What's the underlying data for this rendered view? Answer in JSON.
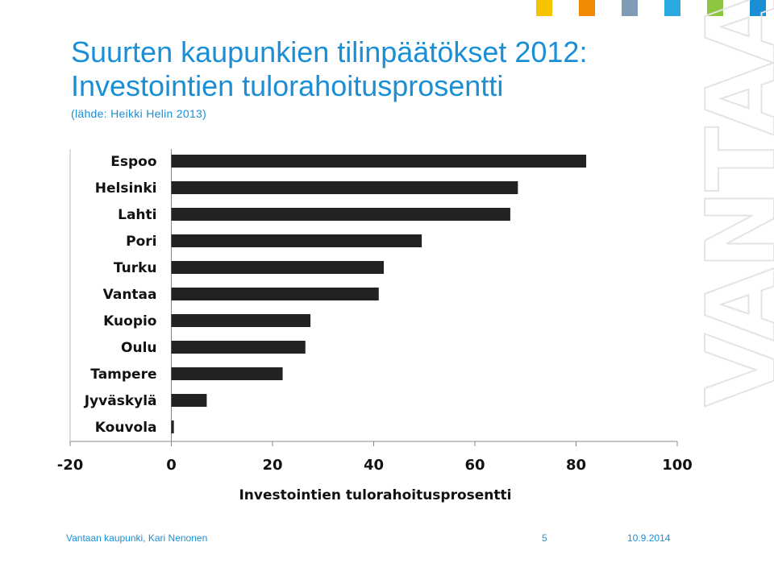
{
  "slide": {
    "title_line1": "Suurten kaupunkien tilinpäätökset 2012:",
    "title_line2": "Investointien tulorahoitusprosentti",
    "subtitle": "(lähde: Heikki Helin 2013)",
    "watermark": "VANTAA",
    "accent_colors": [
      "#f7c200",
      "#f08a00",
      "#7f9bb6",
      "#2aa8e0",
      "#8dc63f",
      "#1a8fd6"
    ]
  },
  "footer": {
    "left": "Vantaan kaupunki, Kari Nenonen",
    "page": "5",
    "date": "10.9.2014"
  },
  "chart_data": {
    "type": "bar",
    "orientation": "horizontal",
    "categories": [
      "Espoo",
      "Helsinki",
      "Lahti",
      "Pori",
      "Turku",
      "Vantaa",
      "Kuopio",
      "Oulu",
      "Tampere",
      "Jyväskylä",
      "Kouvola"
    ],
    "values": [
      82,
      68.5,
      67,
      49.5,
      42,
      41,
      27.5,
      26.5,
      22,
      7,
      0.5
    ],
    "xlabel": "Investointien tulorahoitusprosentti",
    "xlim": [
      -20,
      100
    ],
    "xticks": [
      -20,
      0,
      20,
      40,
      60,
      80,
      100
    ],
    "bar_color": "#222222",
    "grid": false
  }
}
